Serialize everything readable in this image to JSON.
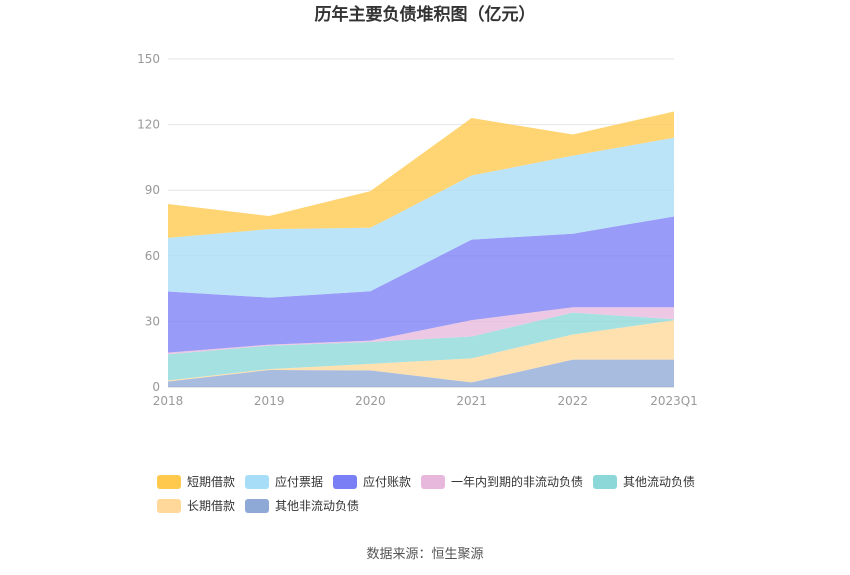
{
  "chart_data": {
    "type": "area",
    "stacked": true,
    "title": "历年主要负债堆积图（亿元）",
    "categories": [
      "2018",
      "2019",
      "2020",
      "2021",
      "2022",
      "2023Q1"
    ],
    "y_ticks": [
      "0",
      "30",
      "60",
      "90",
      "120",
      "150"
    ],
    "ylim": [
      0,
      150
    ],
    "grid": true,
    "legend_position": "bottom",
    "series": [
      {
        "name": "其他非流动负债",
        "color": "#8fa9d6",
        "values": [
          2.5,
          7.8,
          7.6,
          2.1,
          12.5,
          12.5
        ]
      },
      {
        "name": "长期借款",
        "color": "#ffd89a",
        "values": [
          0.5,
          0.4,
          3.0,
          11.0,
          11.5,
          18.0
        ]
      },
      {
        "name": "其他流动负债",
        "color": "#8cd8d8",
        "values": [
          12.0,
          10.7,
          10.0,
          10.0,
          10.0,
          0.5
        ]
      },
      {
        "name": "一年内到期的非流动负债",
        "color": "#e8b8dc",
        "values": [
          0.7,
          0.5,
          0.6,
          7.5,
          2.5,
          5.5
        ]
      },
      {
        "name": "应付账款",
        "color": "#7b7ff5",
        "values": [
          28.0,
          21.5,
          22.6,
          36.8,
          33.6,
          41.5
        ]
      },
      {
        "name": "应付票据",
        "color": "#a8ddf7",
        "values": [
          24.5,
          31.3,
          29.0,
          29.3,
          35.7,
          36.0
        ]
      },
      {
        "name": "短期借款",
        "color": "#ffc94d",
        "values": [
          15.5,
          6.0,
          16.8,
          26.3,
          9.7,
          12.0
        ]
      }
    ],
    "legend_order": [
      "短期借款",
      "应付票据",
      "应付账款",
      "一年内到期的非流动负债",
      "其他流动负债",
      "长期借款",
      "其他非流动负债"
    ]
  },
  "footer": {
    "source": "数据来源：恒生聚源"
  }
}
